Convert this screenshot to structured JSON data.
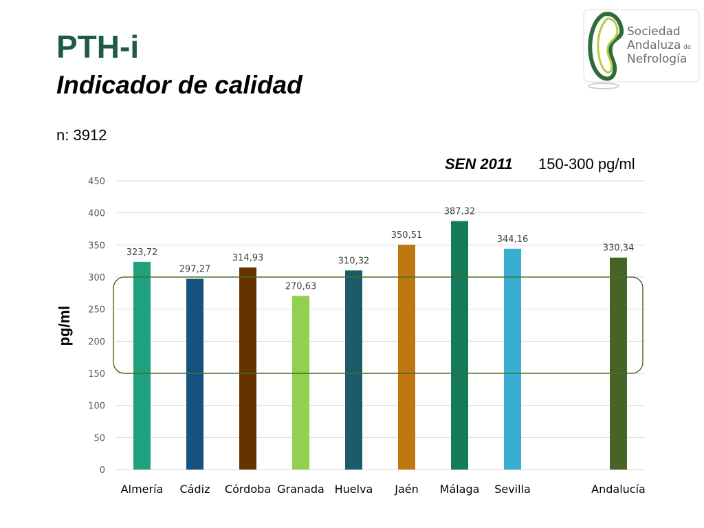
{
  "header": {
    "title": "PTH-i",
    "subtitle": "Indicador de calidad",
    "n_label": "n: 3912",
    "sen_label": "SEN 2011",
    "sen_range": "150-300 pg/ml"
  },
  "logo": {
    "line1": "Sociedad",
    "line2": "Andaluza",
    "line2_small": "de",
    "line3": "Nefrología",
    "colors": {
      "green": "#2e6b3c",
      "lime": "#b8cc3a",
      "text": "#6b6b6b"
    }
  },
  "chart_data": {
    "type": "bar",
    "ylabel": "pg/ml",
    "ylim": [
      0,
      450
    ],
    "yticks": [
      0,
      50,
      100,
      150,
      200,
      250,
      300,
      350,
      400,
      450
    ],
    "grid": true,
    "categories": [
      "Almería",
      "Cádiz",
      "Córdoba",
      "Granada",
      "Huelva",
      "Jaén",
      "Málaga",
      "Sevilla",
      "",
      "Andalucía"
    ],
    "values": [
      323.72,
      297.27,
      314.93,
      270.63,
      310.32,
      350.51,
      387.32,
      344.16,
      null,
      330.34
    ],
    "value_labels": [
      "323,72",
      "297,27",
      "314,93",
      "270,63",
      "310,32",
      "350,51",
      "387,32",
      "344,16",
      "",
      "330,34"
    ],
    "colors": [
      "#21a07d",
      "#17527f",
      "#663300",
      "#92d050",
      "#1d5b6b",
      "#bf770f",
      "#157a5a",
      "#38afd1",
      "",
      "#466425"
    ],
    "reference_range": {
      "low": 150,
      "high": 300,
      "color": "#4a6e2c"
    }
  }
}
